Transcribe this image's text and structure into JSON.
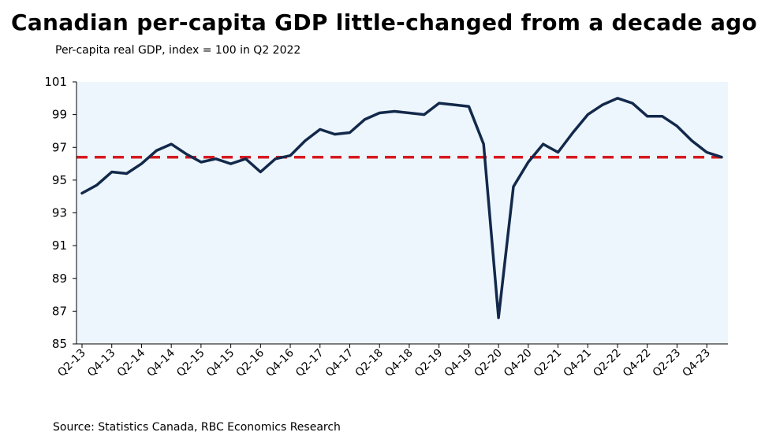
{
  "chart_data": {
    "type": "line",
    "title": "Canadian per-capita GDP little-changed from a decade ago",
    "subtitle": "Per-capita real GDP, index = 100 in Q2 2022",
    "source": "Source: Statistics Canada, RBC Economics Research",
    "xlabel": "",
    "ylabel": "",
    "ylim": [
      85,
      101
    ],
    "yticks": [
      85,
      87,
      89,
      91,
      93,
      95,
      97,
      99,
      101
    ],
    "x": [
      "Q2-13",
      "Q3-13",
      "Q4-13",
      "Q1-14",
      "Q2-14",
      "Q3-14",
      "Q4-14",
      "Q1-15",
      "Q2-15",
      "Q3-15",
      "Q4-15",
      "Q1-16",
      "Q2-16",
      "Q3-16",
      "Q4-16",
      "Q1-17",
      "Q2-17",
      "Q3-17",
      "Q4-17",
      "Q1-18",
      "Q2-18",
      "Q3-18",
      "Q4-18",
      "Q1-19",
      "Q2-19",
      "Q3-19",
      "Q4-19",
      "Q1-20",
      "Q2-20",
      "Q3-20",
      "Q4-20",
      "Q1-21",
      "Q2-21",
      "Q3-21",
      "Q4-21",
      "Q1-22",
      "Q2-22",
      "Q3-22",
      "Q4-22",
      "Q1-23",
      "Q2-23",
      "Q3-23",
      "Q4-23",
      "Q1-24"
    ],
    "xtick_labels": [
      "Q2-13",
      "Q4-13",
      "Q2-14",
      "Q4-14",
      "Q2-15",
      "Q4-15",
      "Q2-16",
      "Q4-16",
      "Q2-17",
      "Q4-17",
      "Q2-18",
      "Q4-18",
      "Q2-19",
      "Q4-19",
      "Q2-20",
      "Q4-20",
      "Q2-21",
      "Q4-21",
      "Q2-22",
      "Q4-22",
      "Q2-23",
      "Q4-23"
    ],
    "series": [
      {
        "values": [
          94.2,
          94.7,
          95.5,
          95.4,
          96.0,
          96.8,
          97.2,
          96.6,
          96.1,
          96.3,
          96.0,
          96.3,
          95.5,
          96.3,
          96.5,
          97.4,
          98.1,
          97.8,
          97.9,
          98.7,
          99.1,
          99.2,
          99.1,
          99.0,
          99.7,
          99.6,
          99.5,
          97.2,
          86.6,
          94.6,
          96.1,
          97.2,
          96.7,
          97.9,
          99.0,
          99.6,
          100.0,
          99.7,
          98.9,
          98.9,
          98.3,
          97.4,
          96.7,
          96.4
        ],
        "color": "#13294b"
      }
    ],
    "reference_line": {
      "value": 96.4,
      "color": "#d71920",
      "style": "dashed"
    },
    "plot_background": "#eef6fd",
    "grid": false,
    "legend": "none"
  }
}
